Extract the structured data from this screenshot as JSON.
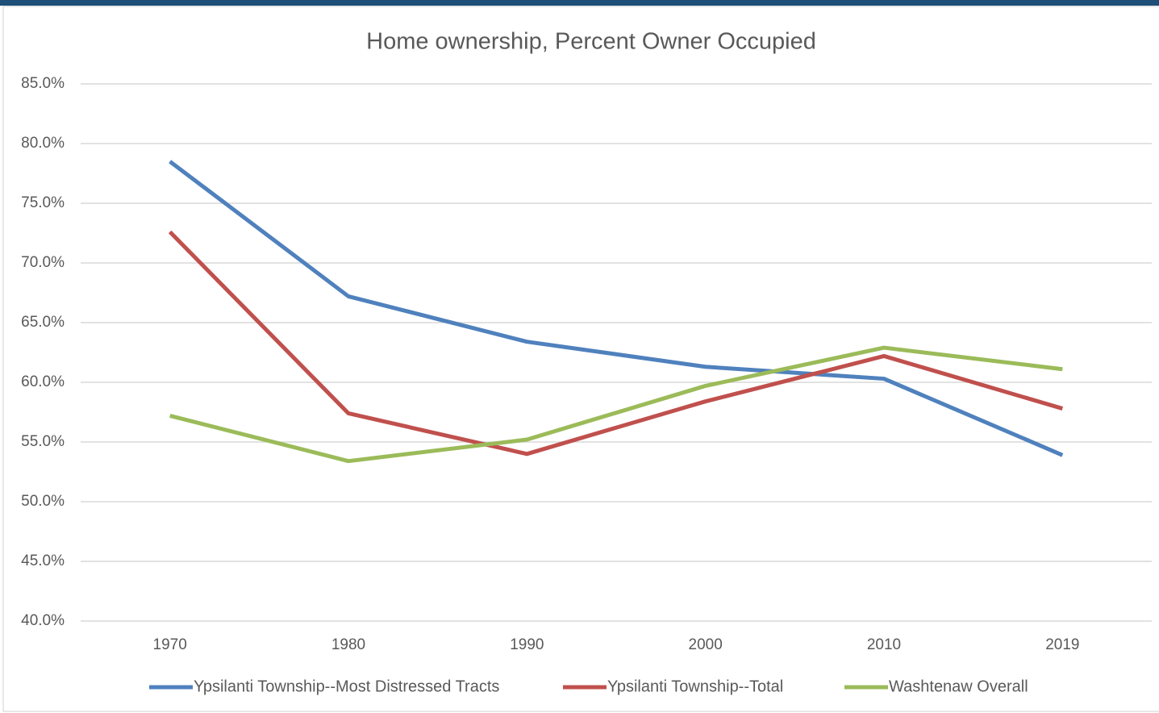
{
  "chart_data": {
    "type": "line",
    "title": "Home ownership, Percent Owner Occupied",
    "categories": [
      "1970",
      "1980",
      "1990",
      "2000",
      "2010",
      "2019"
    ],
    "series": [
      {
        "name": "Ypsilanti Township--Most Distressed Tracts",
        "color": "#4f81bd",
        "values": [
          78.5,
          67.2,
          63.4,
          61.3,
          60.3,
          53.9
        ]
      },
      {
        "name": "Ypsilanti Township--Total",
        "color": "#c0504d",
        "values": [
          72.6,
          57.4,
          54.0,
          58.4,
          62.2,
          57.8
        ]
      },
      {
        "name": "Washtenaw Overall",
        "color": "#9bbb59",
        "values": [
          57.2,
          53.4,
          55.2,
          59.7,
          62.9,
          61.1
        ]
      }
    ],
    "ylim": [
      40,
      85
    ],
    "yticks": [
      {
        "value": 40,
        "label": "40.0%"
      },
      {
        "value": 45,
        "label": "45.0%"
      },
      {
        "value": 50,
        "label": "50.0%"
      },
      {
        "value": 55,
        "label": "55.0%"
      },
      {
        "value": 60,
        "label": "60.0%"
      },
      {
        "value": 65,
        "label": "65.0%"
      },
      {
        "value": 70,
        "label": "70.0%"
      },
      {
        "value": 75,
        "label": "75.0%"
      },
      {
        "value": 80,
        "label": "80.0%"
      },
      {
        "value": 85,
        "label": "85.0%"
      }
    ],
    "grid": true,
    "legend": "bottom"
  }
}
